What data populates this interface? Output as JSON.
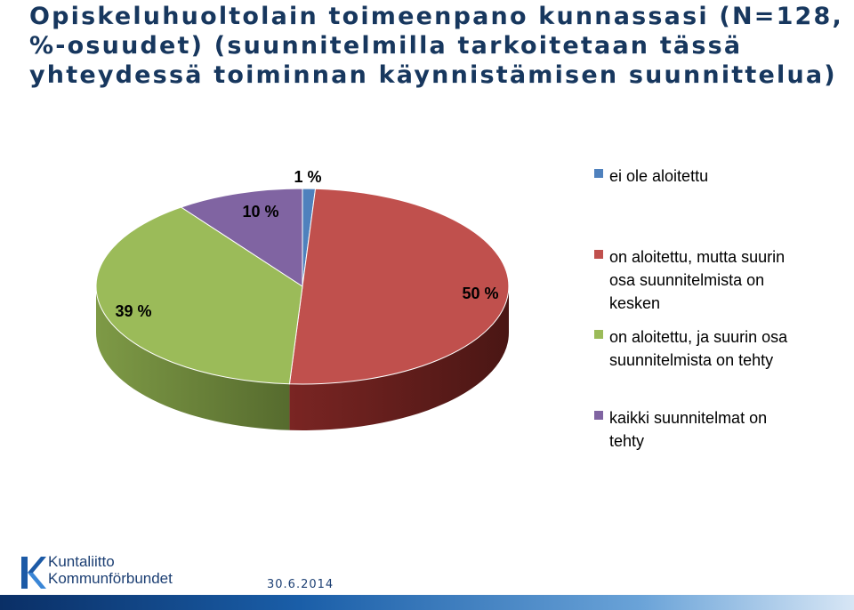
{
  "title": {
    "line1": "Opiskeluhuoltolain toimeenpano kunnassasi (N=128,",
    "line2": "%-osuudet) (suunnitelmilla tarkoitetaan tässä",
    "line3": "yhteydessä toiminnan käynnistämisen suunnittelua)"
  },
  "chart_data": {
    "type": "pie",
    "three_d": true,
    "categories": [
      "ei ole aloitettu",
      "on aloitettu, mutta suurin osa suunnitelmista on kesken",
      "on aloitettu, ja suurin osa suunnitelmista on tehty",
      "kaikki suunnitelmat on tehty"
    ],
    "values": [
      1,
      50,
      39,
      10
    ],
    "data_labels": [
      "1 %",
      "50 %",
      "39 %",
      "10 %"
    ],
    "colors": [
      "#4f81bd",
      "#c0504d",
      "#9bbb59",
      "#8064a2"
    ],
    "legend_position": "right"
  },
  "legend": {
    "items": [
      {
        "label_lines": [
          "ei ole aloitettu"
        ],
        "color": "#4f81bd"
      },
      {
        "label_lines": [
          "on aloitettu, mutta suurin",
          "osa suunnitelmista on",
          "kesken"
        ],
        "color": "#c0504d"
      },
      {
        "label_lines": [
          "on aloitettu, ja suurin osa",
          "suunnitelmista on tehty"
        ],
        "color": "#9bbb59"
      },
      {
        "label_lines": [
          "kaikki suunnitelmat on",
          "tehty"
        ],
        "color": "#8064a2"
      }
    ]
  },
  "footer": {
    "logo_line1": "Kuntaliitto",
    "logo_line2": "Kommunförbundet",
    "date": "30.6.2014"
  }
}
